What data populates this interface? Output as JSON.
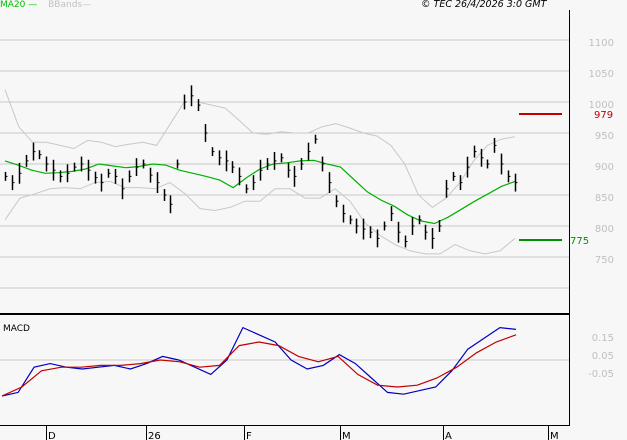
{
  "header": {
    "legend_ma": "MA20",
    "legend_bbands": "BBands",
    "copyright": "© TEC 26/4/2026 3:0 GMT"
  },
  "colors": {
    "background": "#f7f7f7",
    "grid": "#c8c8c8",
    "bars": "#000000",
    "ma20": "#00b000",
    "bbands": "#c8c8c8",
    "resistance": "#c00000",
    "support": "#009000",
    "macd": "#0000c0",
    "signal": "#c00000"
  },
  "chart_data": [
    {
      "type": "ohlc",
      "title": "Price with MA20 and Bollinger Bands",
      "xlabel": "",
      "ylabel": "",
      "ylim": [
        700,
        1125
      ],
      "y_ticks": [
        1100,
        1050,
        1000,
        950,
        900,
        850,
        800,
        750
      ],
      "x_ticks": [
        "D",
        "26",
        "F",
        "M",
        "A",
        "M"
      ],
      "grid": true,
      "legend": [
        "MA20",
        "BBands"
      ],
      "annotations": [
        {
          "label": "979",
          "value": 979,
          "type": "resistance",
          "color": "#c00000"
        },
        {
          "label": "775",
          "value": 775,
          "type": "support",
          "color": "#009000"
        }
      ],
      "series": [
        {
          "name": "MA20",
          "values": [
            905,
            898,
            890,
            885,
            886,
            888,
            892,
            900,
            897,
            894,
            896,
            900,
            898,
            890,
            885,
            880,
            874,
            862,
            878,
            892,
            900,
            902,
            905,
            906,
            900,
            895,
            875,
            855,
            842,
            832,
            818,
            808,
            804,
            814,
            827,
            840,
            852,
            864,
            872
          ]
        },
        {
          "name": "BBands upper",
          "values": [
            1020,
            960,
            935,
            935,
            930,
            925,
            938,
            935,
            928,
            932,
            935,
            930,
            965,
            1000,
            1000,
            995,
            990,
            970,
            950,
            948,
            952,
            950,
            950,
            960,
            965,
            958,
            950,
            945,
            930,
            900,
            850,
            830,
            845,
            870,
            905,
            930,
            940,
            944
          ]
        },
        {
          "name": "BBands lower",
          "values": [
            810,
            845,
            852,
            860,
            862,
            860,
            870,
            872,
            862,
            862,
            860,
            870,
            852,
            828,
            825,
            830,
            840,
            840,
            860,
            860,
            845,
            845,
            860,
            840,
            805,
            785,
            770,
            760,
            755,
            755,
            770,
            760,
            755,
            760,
            780
          ]
        }
      ]
    },
    {
      "type": "line",
      "title": "MACD",
      "ylim": [
        -0.2,
        0.25
      ],
      "y_ticks": [
        "0.15",
        "0.05",
        "-0.05"
      ],
      "x_ticks": [
        "D",
        "26",
        "F",
        "M",
        "A",
        "M"
      ],
      "series": [
        {
          "name": "MACD",
          "color": "#0000c0",
          "values": [
            -0.2,
            -0.18,
            -0.04,
            -0.02,
            -0.04,
            -0.05,
            -0.04,
            -0.03,
            -0.05,
            -0.02,
            0.02,
            0.0,
            -0.04,
            -0.08,
            0.0,
            0.18,
            0.14,
            0.1,
            0.0,
            -0.05,
            -0.03,
            0.03,
            -0.02,
            -0.1,
            -0.18,
            -0.19,
            -0.17,
            -0.15,
            -0.06,
            0.06,
            0.12,
            0.18,
            0.17
          ]
        },
        {
          "name": "Signal",
          "color": "#c00000",
          "values": [
            -0.2,
            -0.15,
            -0.06,
            -0.04,
            -0.04,
            -0.03,
            -0.03,
            -0.02,
            0.0,
            -0.01,
            -0.04,
            -0.03,
            0.08,
            0.1,
            0.08,
            0.02,
            -0.01,
            0.02,
            -0.08,
            -0.14,
            -0.15,
            -0.14,
            -0.1,
            -0.04,
            0.04,
            0.1,
            0.14
          ]
        }
      ]
    }
  ]
}
